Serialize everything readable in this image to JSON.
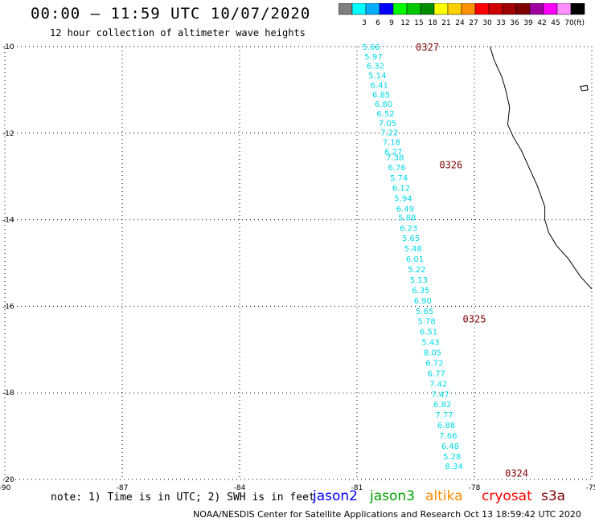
{
  "title": "00:00 – 11:59 UTC 10/07/2020",
  "subtitle": "12 hour collection of altimeter wave heights",
  "legend": {
    "unit": "(ft)",
    "bins": [
      {
        "label": "",
        "color": "#7f7f7f"
      },
      {
        "label": "3",
        "color": "#00ffff"
      },
      {
        "label": "6",
        "color": "#00b0ff"
      },
      {
        "label": "9",
        "color": "#0000ff"
      },
      {
        "label": "12",
        "color": "#00ff00"
      },
      {
        "label": "15",
        "color": "#00c800"
      },
      {
        "label": "18",
        "color": "#008c00"
      },
      {
        "label": "21",
        "color": "#ffff00"
      },
      {
        "label": "24",
        "color": "#ffd000"
      },
      {
        "label": "27",
        "color": "#ff9000"
      },
      {
        "label": "30",
        "color": "#ff0000"
      },
      {
        "label": "33",
        "color": "#d00000"
      },
      {
        "label": "36",
        "color": "#a00000"
      },
      {
        "label": "39",
        "color": "#800000"
      },
      {
        "label": "42",
        "color": "#a000a0"
      },
      {
        "label": "45",
        "color": "#ff00ff"
      },
      {
        "label": "70",
        "color": "#ff90ff"
      },
      {
        "label": "",
        "color": "#000000"
      }
    ]
  },
  "axes": {
    "lon_range": [
      -90,
      -75
    ],
    "lat_range": [
      -20,
      -10
    ],
    "x_ticks": [
      {
        "value": -90,
        "label": "-90"
      },
      {
        "value": -87,
        "label": "-87"
      },
      {
        "value": -84,
        "label": "-84"
      },
      {
        "value": -81,
        "label": "-81"
      },
      {
        "value": -78,
        "label": "-78"
      },
      {
        "value": -75,
        "label": "-75"
      }
    ],
    "y_ticks": [
      {
        "value": -10,
        "label": "-10"
      },
      {
        "value": -12,
        "label": "-12"
      },
      {
        "value": -14,
        "label": "-14"
      },
      {
        "value": -16,
        "label": "-16"
      },
      {
        "value": -18,
        "label": "-18"
      },
      {
        "value": -20,
        "label": "-20"
      }
    ],
    "grid": "dotted"
  },
  "track": {
    "color": "#00d8e8",
    "points": [
      {
        "lon": -80.64,
        "lat": -10.0,
        "swh": "5.66"
      },
      {
        "lon": -80.58,
        "lat": -10.22,
        "swh": "5.97"
      },
      {
        "lon": -80.53,
        "lat": -10.44,
        "swh": "6.32"
      },
      {
        "lon": -80.48,
        "lat": -10.66,
        "swh": "5.14"
      },
      {
        "lon": -80.43,
        "lat": -10.88,
        "swh": "6.41"
      },
      {
        "lon": -80.38,
        "lat": -11.1,
        "swh": "6.85"
      },
      {
        "lon": -80.32,
        "lat": -11.32,
        "swh": "6.80"
      },
      {
        "lon": -80.27,
        "lat": -11.54,
        "swh": "6.52"
      },
      {
        "lon": -80.22,
        "lat": -11.76,
        "swh": "7.05"
      },
      {
        "lon": -80.17,
        "lat": -11.98,
        "swh": "7.22"
      },
      {
        "lon": -80.12,
        "lat": -12.2,
        "swh": "7.18"
      },
      {
        "lon": -80.07,
        "lat": -12.42,
        "swh": "6.27"
      },
      {
        "lon": -80.03,
        "lat": -12.55,
        "swh": "7.38"
      },
      {
        "lon": -79.98,
        "lat": -12.78,
        "swh": "6.76"
      },
      {
        "lon": -79.93,
        "lat": -13.02,
        "swh": "5.74"
      },
      {
        "lon": -79.87,
        "lat": -13.26,
        "swh": "6.12"
      },
      {
        "lon": -79.82,
        "lat": -13.5,
        "swh": "5.94"
      },
      {
        "lon": -79.77,
        "lat": -13.74,
        "swh": "6.49"
      },
      {
        "lon": -79.72,
        "lat": -13.94,
        "swh": "5.88"
      },
      {
        "lon": -79.68,
        "lat": -14.18,
        "swh": "6.23"
      },
      {
        "lon": -79.62,
        "lat": -14.42,
        "swh": "5.65"
      },
      {
        "lon": -79.57,
        "lat": -14.66,
        "swh": "5.48"
      },
      {
        "lon": -79.52,
        "lat": -14.9,
        "swh": "6.01"
      },
      {
        "lon": -79.47,
        "lat": -15.14,
        "swh": "5.22"
      },
      {
        "lon": -79.42,
        "lat": -15.38,
        "swh": "5.13"
      },
      {
        "lon": -79.37,
        "lat": -15.62,
        "swh": "6.35"
      },
      {
        "lon": -79.32,
        "lat": -15.86,
        "swh": "6.90"
      },
      {
        "lon": -79.27,
        "lat": -16.1,
        "swh": "5.65"
      },
      {
        "lon": -79.22,
        "lat": -16.34,
        "swh": "5.78"
      },
      {
        "lon": -79.17,
        "lat": -16.58,
        "swh": "6.51"
      },
      {
        "lon": -79.12,
        "lat": -16.82,
        "swh": "5.43"
      },
      {
        "lon": -79.07,
        "lat": -17.06,
        "swh": "8.05"
      },
      {
        "lon": -79.02,
        "lat": -17.3,
        "swh": "6.72"
      },
      {
        "lon": -78.97,
        "lat": -17.54,
        "swh": "6.77"
      },
      {
        "lon": -78.92,
        "lat": -17.78,
        "swh": "7.42"
      },
      {
        "lon": -78.87,
        "lat": -18.02,
        "swh": "7.47"
      },
      {
        "lon": -78.82,
        "lat": -18.26,
        "swh": "6.82"
      },
      {
        "lon": -78.77,
        "lat": -18.5,
        "swh": "7.77"
      },
      {
        "lon": -78.72,
        "lat": -18.74,
        "swh": "6.88"
      },
      {
        "lon": -78.67,
        "lat": -18.98,
        "swh": "7.66"
      },
      {
        "lon": -78.62,
        "lat": -19.22,
        "swh": "6.48"
      },
      {
        "lon": -78.57,
        "lat": -19.46,
        "swh": "5.28"
      },
      {
        "lon": -78.52,
        "lat": -19.68,
        "swh": "8.34"
      }
    ]
  },
  "time_labels": {
    "color": "#800000",
    "items": [
      {
        "lon": -79.2,
        "lat": -10.0,
        "text": "0327"
      },
      {
        "lon": -78.6,
        "lat": -12.72,
        "text": "0326"
      },
      {
        "lon": -78.0,
        "lat": -16.28,
        "text": "0325"
      },
      {
        "lon": -76.92,
        "lat": -19.84,
        "text": "0324"
      }
    ]
  },
  "coastline": [
    [
      -77.6,
      -10.0
    ],
    [
      -77.5,
      -10.3
    ],
    [
      -77.3,
      -10.7
    ],
    [
      -77.2,
      -11.0
    ],
    [
      -77.1,
      -11.4
    ],
    [
      -77.15,
      -11.8
    ],
    [
      -77.0,
      -12.1
    ],
    [
      -76.8,
      -12.4
    ],
    [
      -76.6,
      -12.8
    ],
    [
      -76.4,
      -13.2
    ],
    [
      -76.2,
      -13.7
    ],
    [
      -76.2,
      -14.0
    ],
    [
      -76.1,
      -14.3
    ],
    [
      -75.9,
      -14.6
    ],
    [
      -75.6,
      -14.9
    ],
    [
      -75.3,
      -15.3
    ],
    [
      -75.0,
      -15.6
    ]
  ],
  "island": [
    [
      -75.3,
      -10.92
    ],
    [
      -75.12,
      -10.9
    ],
    [
      -75.1,
      -11.0
    ],
    [
      -75.25,
      -11.02
    ],
    [
      -75.3,
      -10.92
    ]
  ],
  "footer": {
    "note": "note: 1) Time is in UTC; 2) SWH is in feet",
    "satellites": [
      {
        "name": "jason2",
        "color": "#0000ff"
      },
      {
        "name": "jason3",
        "color": "#00a000"
      },
      {
        "name": "altika",
        "color": "#ff8c00"
      },
      {
        "name": "cryosat",
        "color": "#ff0000"
      },
      {
        "name": "s3a",
        "color": "#800000"
      }
    ],
    "credit": "NOAA/NESDIS Center for Satellite Applications and Research    Oct 13 18:59:42 UTC 2020"
  }
}
